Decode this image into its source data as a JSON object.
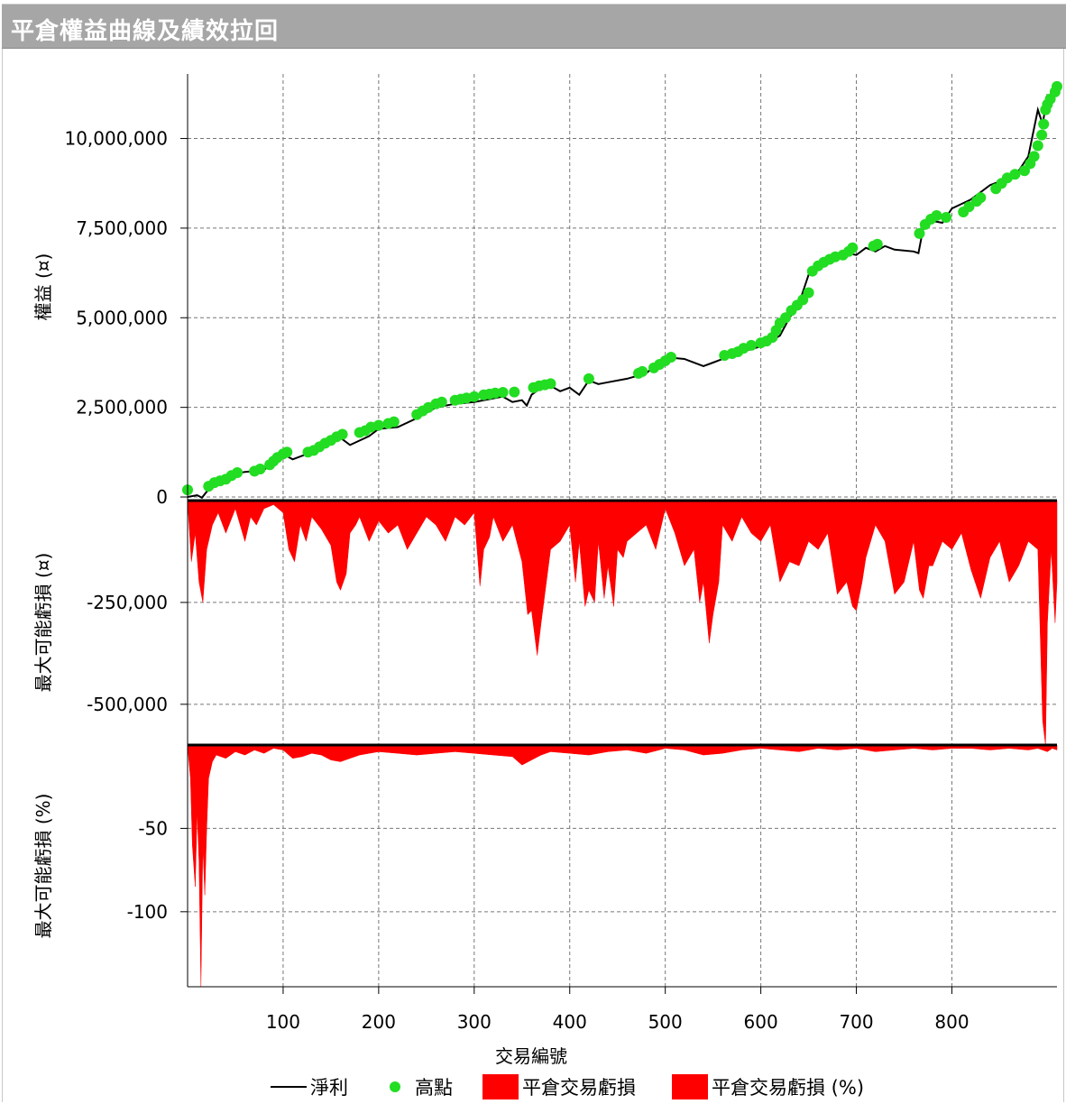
{
  "window": {
    "title": "平倉權益曲線及績效拉回"
  },
  "chart_data": {
    "type": "line",
    "x_axis": {
      "label": "交易編號",
      "range": [
        0,
        910
      ],
      "ticks": [
        100,
        200,
        300,
        400,
        500,
        600,
        700,
        800
      ]
    },
    "panels": [
      {
        "id": "equity",
        "ylabel": "權益 (¤)",
        "ylim": [
          -100000,
          11800000
        ],
        "yticks": [
          0,
          2500000,
          5000000,
          7500000,
          10000000
        ],
        "ytick_labels": [
          "0",
          "2,500,000",
          "5,000,000",
          "7,500,000",
          "10,000,000"
        ],
        "series": [
          {
            "name": "淨利",
            "kind": "line",
            "color": "#000000",
            "x": [
              0,
              10,
              15,
              20,
              30,
              50,
              60,
              80,
              100,
              110,
              130,
              150,
              160,
              170,
              190,
              200,
              220,
              240,
              260,
              280,
              300,
              330,
              340,
              350,
              355,
              360,
              370,
              380,
              390,
              400,
              410,
              420,
              430,
              440,
              460,
              480,
              500,
              520,
              540,
              550,
              560,
              580,
              600,
              610,
              620,
              630,
              640,
              650,
              660,
              680,
              690,
              700,
              710,
              720,
              730,
              740,
              760,
              765,
              770,
              780,
              790,
              800,
              820,
              840,
              860,
              870,
              880,
              890,
              895,
              900,
              905,
              910
            ],
            "y": [
              0,
              50000,
              -20000,
              150000,
              400000,
              650000,
              700000,
              750000,
              1200000,
              1050000,
              1250000,
              1500000,
              1650000,
              1450000,
              1700000,
              1900000,
              1950000,
              2200000,
              2500000,
              2600000,
              2650000,
              2800000,
              2650000,
              2700000,
              2550000,
              2850000,
              3050000,
              3100000,
              2950000,
              3050000,
              2850000,
              3250000,
              3150000,
              3200000,
              3300000,
              3450000,
              3900000,
              3850000,
              3650000,
              3750000,
              3850000,
              4050000,
              4200000,
              4350000,
              4500000,
              5000000,
              5400000,
              6200000,
              6500000,
              6700000,
              6800000,
              6750000,
              6950000,
              6850000,
              7000000,
              6900000,
              6850000,
              6800000,
              7500000,
              7700000,
              7650000,
              8050000,
              8300000,
              8700000,
              8900000,
              9100000,
              9500000,
              10800000,
              10400000,
              11200000,
              11100000,
              11500000
            ]
          },
          {
            "name": "高點",
            "kind": "scatter",
            "color": "#22dd22",
            "x": [
              0,
              22,
              28,
              34,
              40,
              46,
              52,
              70,
              76,
              86,
              90,
              94,
              100,
              104,
              126,
              132,
              138,
              144,
              150,
              156,
              162,
              180,
              186,
              192,
              200,
              210,
              216,
              240,
              246,
              252,
              260,
              266,
              280,
              286,
              292,
              300,
              310,
              316,
              322,
              330,
              342,
              362,
              368,
              374,
              380,
              420,
              472,
              476,
              488,
              494,
              500,
              506,
              562,
              570,
              576,
              582,
              590,
              600,
              606,
              612,
              616,
              620,
              626,
              632,
              638,
              644,
              650,
              654,
              660,
              666,
              672,
              678,
              686,
              692,
              696,
              718,
              722,
              766,
              772,
              778,
              784,
              794,
              812,
              818,
              826,
              830,
              846,
              852,
              858,
              866,
              876,
              882,
              886,
              890,
              894,
              896,
              898,
              900,
              903,
              908,
              910
            ],
            "y": [
              200000,
              300000,
              400000,
              450000,
              500000,
              600000,
              680000,
              720000,
              780000,
              900000,
              1000000,
              1100000,
              1200000,
              1250000,
              1250000,
              1300000,
              1400000,
              1500000,
              1580000,
              1680000,
              1750000,
              1800000,
              1850000,
              1950000,
              2000000,
              2050000,
              2100000,
              2300000,
              2400000,
              2500000,
              2600000,
              2650000,
              2700000,
              2730000,
              2760000,
              2800000,
              2850000,
              2870000,
              2900000,
              2920000,
              2930000,
              3050000,
              3100000,
              3130000,
              3160000,
              3300000,
              3450000,
              3500000,
              3600000,
              3700000,
              3800000,
              3900000,
              3950000,
              4000000,
              4050000,
              4150000,
              4230000,
              4300000,
              4350000,
              4450000,
              4650000,
              4850000,
              5000000,
              5200000,
              5350000,
              5500000,
              5700000,
              6300000,
              6450000,
              6550000,
              6630000,
              6700000,
              6750000,
              6850000,
              6950000,
              7000000,
              7050000,
              7350000,
              7600000,
              7750000,
              7850000,
              7800000,
              7950000,
              8100000,
              8250000,
              8350000,
              8600000,
              8750000,
              8900000,
              9000000,
              9100000,
              9300000,
              9500000,
              9800000,
              10100000,
              10400000,
              10800000,
              10950000,
              11100000,
              11300000,
              11450000
            ]
          }
        ]
      },
      {
        "id": "drawdown_abs",
        "ylabel": "最大可能虧損 (¤)",
        "ylim": [
          -600000,
          0
        ],
        "yticks": [
          -250000,
          -500000
        ],
        "ytick_labels": [
          "-250,000",
          "-500,000"
        ],
        "series": [
          {
            "name": "平倉交易虧損",
            "kind": "area",
            "color": "#ff0000",
            "x": [
              0,
              4,
              8,
              12,
              16,
              20,
              26,
              32,
              40,
              50,
              60,
              66,
              72,
              80,
              90,
              100,
              106,
              112,
              118,
              124,
              130,
              140,
              150,
              156,
              160,
              166,
              170,
              176,
              180,
              190,
              200,
              210,
              220,
              230,
              240,
              250,
              260,
              270,
              280,
              290,
              300,
              306,
              310,
              316,
              320,
              330,
              340,
              350,
              356,
              360,
              366,
              370,
              380,
              390,
              400,
              406,
              410,
              416,
              420,
              426,
              430,
              436,
              440,
              446,
              450,
              456,
              460,
              470,
              480,
              490,
              500,
              510,
              520,
              530,
              536,
              540,
              546,
              550,
              556,
              560,
              570,
              580,
              590,
              600,
              610,
              620,
              630,
              640,
              650,
              660,
              670,
              680,
              690,
              696,
              700,
              706,
              710,
              720,
              730,
              740,
              750,
              760,
              766,
              770,
              776,
              780,
              790,
              800,
              810,
              820,
              830,
              840,
              850,
              860,
              870,
              880,
              890,
              895,
              898,
              900,
              904,
              908,
              910
            ],
            "y": [
              0,
              -150000,
              -80000,
              -200000,
              -250000,
              -120000,
              -60000,
              -30000,
              -80000,
              -20000,
              -100000,
              -40000,
              -60000,
              -20000,
              -10000,
              -30000,
              -120000,
              -150000,
              -60000,
              -100000,
              -40000,
              -70000,
              -110000,
              -200000,
              -220000,
              -180000,
              -80000,
              -60000,
              -40000,
              -100000,
              -50000,
              -80000,
              -60000,
              -120000,
              -80000,
              -40000,
              -60000,
              -100000,
              -40000,
              -60000,
              -30000,
              -210000,
              -120000,
              -90000,
              -40000,
              -100000,
              -60000,
              -150000,
              -280000,
              -270000,
              -380000,
              -300000,
              -120000,
              -100000,
              -60000,
              -200000,
              -100000,
              -260000,
              -220000,
              -250000,
              -100000,
              -240000,
              -160000,
              -260000,
              -120000,
              -140000,
              -100000,
              -80000,
              -60000,
              -120000,
              -20000,
              -80000,
              -160000,
              -120000,
              -250000,
              -200000,
              -350000,
              -280000,
              -200000,
              -60000,
              -100000,
              -40000,
              -80000,
              -100000,
              -60000,
              -200000,
              -150000,
              -160000,
              -100000,
              -120000,
              -80000,
              -230000,
              -200000,
              -260000,
              -270000,
              -200000,
              -140000,
              -60000,
              -100000,
              -230000,
              -200000,
              -100000,
              -220000,
              -240000,
              -160000,
              -160000,
              -100000,
              -120000,
              -80000,
              -170000,
              -240000,
              -140000,
              -100000,
              -200000,
              -160000,
              -100000,
              -120000,
              -540000,
              -600000,
              -300000,
              -120000,
              -300000,
              -200000
            ]
          }
        ]
      },
      {
        "id": "drawdown_pct",
        "ylabel": "最大可能虧損 (%)",
        "ylim": [
          -145,
          0
        ],
        "yticks": [
          -50,
          -100
        ],
        "ytick_labels": [
          "-50",
          "-100"
        ],
        "series": [
          {
            "name": "平倉交易虧損 (%)",
            "kind": "area",
            "color": "#ff0000",
            "x": [
              0,
              3,
              5,
              8,
              10,
              12,
              14,
              16,
              18,
              20,
              22,
              26,
              30,
              40,
              50,
              60,
              70,
              80,
              90,
              100,
              110,
              120,
              130,
              140,
              150,
              160,
              170,
              180,
              190,
              200,
              220,
              240,
              260,
              280,
              300,
              320,
              340,
              350,
              360,
              370,
              380,
              400,
              420,
              440,
              460,
              480,
              500,
              520,
              540,
              560,
              580,
              600,
              620,
              640,
              660,
              680,
              700,
              720,
              740,
              760,
              780,
              800,
              820,
              840,
              860,
              880,
              890,
              900,
              905,
              910
            ],
            "y": [
              0,
              -20,
              -60,
              -85,
              -40,
              -70,
              -145,
              -60,
              -90,
              -50,
              -20,
              -10,
              -6,
              -8,
              -4,
              -6,
              -3,
              -5,
              -2,
              -3,
              -8,
              -7,
              -5,
              -6,
              -9,
              -10,
              -8,
              -6,
              -5,
              -4,
              -5,
              -6,
              -5,
              -4,
              -5,
              -6,
              -7,
              -12,
              -9,
              -6,
              -4,
              -5,
              -6,
              -4,
              -3,
              -5,
              -2,
              -3,
              -6,
              -5,
              -3,
              -2,
              -3,
              -4,
              -2,
              -3,
              -2,
              -4,
              -3,
              -2,
              -3,
              -2,
              -2,
              -3,
              -2,
              -3,
              -2,
              -4,
              -2,
              -3
            ]
          }
        ]
      }
    ],
    "legend": {
      "position": "bottom",
      "entries": [
        {
          "label": "淨利",
          "symbol": "line",
          "color": "#000000"
        },
        {
          "label": "高點",
          "symbol": "dot",
          "color": "#22dd22"
        },
        {
          "label": "平倉交易虧損",
          "symbol": "box",
          "color": "#ff0000"
        },
        {
          "label": "平倉交易虧損 (%)",
          "symbol": "box",
          "color": "#ff0000"
        }
      ]
    },
    "grid": true
  }
}
